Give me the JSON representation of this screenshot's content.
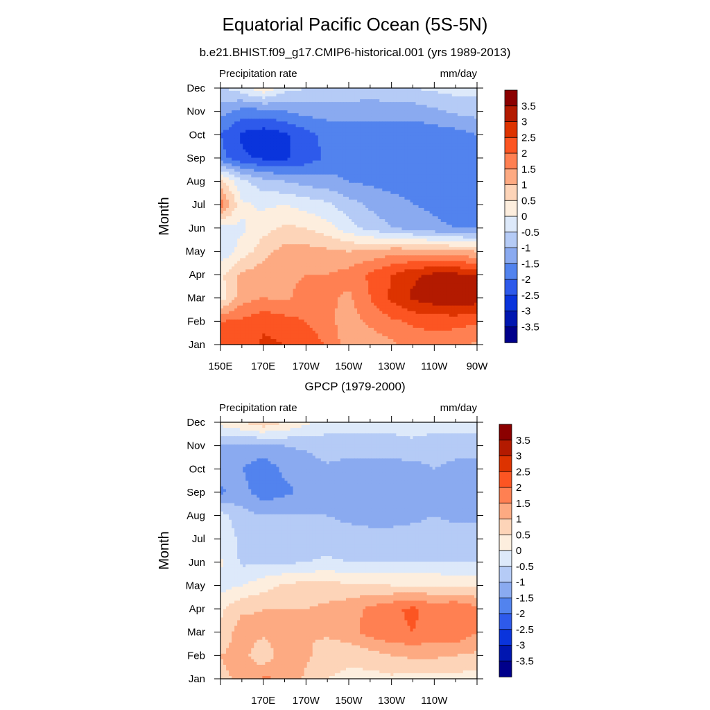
{
  "figure": {
    "title": "Equatorial Pacific Ocean (5S-5N)",
    "subtitle": "b.e21.BHIST.f09_g17.CMIP6-historical.001 (yrs 1989-2013)",
    "panel2_title": "GPCP (1979-2000)"
  },
  "colorbar": {
    "levels": [
      "3.5",
      "3",
      "2.5",
      "2",
      "1.5",
      "1",
      "0.5",
      "0",
      "-0.5",
      "-1",
      "-1.5",
      "-2",
      "-2.5",
      "-3",
      "-3.5"
    ],
    "colors": [
      "#8b0000",
      "#b31a00",
      "#dd3300",
      "#fc5522",
      "#ff8052",
      "#fdaa82",
      "#fdd4b8",
      "#fdeede",
      "#dde9fa",
      "#b5cbf6",
      "#8aaaf0",
      "#5283ee",
      "#2e5aeb",
      "#0a34dc",
      "#0016b0",
      "#00008b"
    ]
  },
  "chart_data": [
    {
      "type": "heatmap",
      "panel": "model",
      "left_label": "Precipitation rate",
      "right_label": "mm/day",
      "ylabel": "Month",
      "yticks": [
        "Jan",
        "Feb",
        "Mar",
        "Apr",
        "May",
        "Jun",
        "Jul",
        "Aug",
        "Sep",
        "Oct",
        "Nov",
        "Dec"
      ],
      "xticks": [
        "150E",
        "170E",
        "170W",
        "150W",
        "130W",
        "110W",
        "90W"
      ],
      "xlim": [
        150,
        270
      ],
      "x": [
        150,
        160,
        170,
        180,
        190,
        200,
        210,
        220,
        230,
        240,
        250,
        260,
        270
      ],
      "y": [
        1,
        2,
        3,
        4,
        5,
        6,
        7,
        8,
        9,
        10,
        11,
        12
      ],
      "z": [
        [
          2.3,
          2.2,
          2.6,
          2.5,
          2.4,
          1.9,
          1.2,
          1.2,
          1.4,
          1.7,
          1.7,
          1.6,
          1.4
        ],
        [
          2.0,
          2.1,
          2.4,
          2.2,
          2.0,
          1.6,
          1.3,
          1.6,
          1.9,
          2.1,
          2.2,
          2.2,
          2.1
        ],
        [
          0.2,
          1.3,
          1.5,
          1.4,
          1.7,
          1.6,
          1.4,
          2.0,
          2.6,
          3.1,
          3.3,
          3.4,
          3.3
        ],
        [
          0.4,
          1.1,
          1.3,
          1.4,
          1.5,
          1.5,
          1.7,
          2.1,
          2.5,
          2.9,
          3.1,
          3.1,
          3.0
        ],
        [
          -0.4,
          0.2,
          0.8,
          1.2,
          1.2,
          1.1,
          1.0,
          1.1,
          1.3,
          1.3,
          1.2,
          1.1,
          1.0
        ],
        [
          -0.2,
          -0.1,
          0.3,
          0.6,
          0.5,
          0.2,
          -0.3,
          -0.7,
          -1.0,
          -1.2,
          -1.4,
          -1.5,
          -1.6
        ],
        [
          1.8,
          0.1,
          -0.1,
          0.0,
          -0.2,
          -0.4,
          -0.8,
          -1.1,
          -1.3,
          -1.5,
          -1.6,
          -1.7,
          -1.7
        ],
        [
          0.7,
          -0.4,
          -0.8,
          -1.0,
          -1.2,
          -1.3,
          -1.5,
          -1.6,
          -1.7,
          -1.7,
          -1.7,
          -1.7,
          -1.7
        ],
        [
          -1.8,
          -2.4,
          -2.6,
          -2.6,
          -2.3,
          -1.9,
          -1.8,
          -1.8,
          -1.8,
          -1.8,
          -1.8,
          -1.8,
          -1.8
        ],
        [
          -2.0,
          -2.6,
          -2.8,
          -2.6,
          -2.2,
          -1.8,
          -1.7,
          -1.8,
          -1.8,
          -1.8,
          -1.8,
          -1.7,
          -1.5
        ],
        [
          -1.3,
          -1.7,
          -1.7,
          -1.5,
          -1.3,
          -1.3,
          -1.3,
          -1.3,
          -1.3,
          -1.3,
          -1.1,
          -0.9,
          -0.8
        ],
        [
          -0.6,
          -0.2,
          0.4,
          -0.3,
          -0.5,
          -0.6,
          -0.6,
          -0.7,
          -0.6,
          -0.5,
          -0.4,
          -0.3,
          -0.3
        ]
      ]
    },
    {
      "type": "heatmap",
      "panel": "gpcp",
      "left_label": "Precipitation rate",
      "right_label": "mm/day",
      "ylabel": "Month",
      "yticks": [
        "Jan",
        "Feb",
        "Mar",
        "Apr",
        "May",
        "Jun",
        "Jul",
        "Aug",
        "Sep",
        "Oct",
        "Nov",
        "Dec"
      ],
      "xticks": [
        "170E",
        "170W",
        "150W",
        "130W",
        "110W"
      ],
      "xlim": [
        150,
        270
      ],
      "x": [
        150,
        160,
        170,
        180,
        190,
        200,
        210,
        220,
        230,
        240,
        250,
        260,
        270
      ],
      "y": [
        1,
        2,
        3,
        4,
        5,
        6,
        7,
        8,
        9,
        10,
        11,
        12
      ],
      "z": [
        [
          0.9,
          1.1,
          1.6,
          1.4,
          0.9,
          0.5,
          0.4,
          0.3,
          0.4,
          0.3,
          0.3,
          0.3,
          0.3
        ],
        [
          1.0,
          1.2,
          0.6,
          1.4,
          1.1,
          0.7,
          0.6,
          0.8,
          1.0,
          1.1,
          1.1,
          1.0,
          0.9
        ],
        [
          0.6,
          1.3,
          1.1,
          1.2,
          1.0,
          1.1,
          1.3,
          1.7,
          1.9,
          2.0,
          1.8,
          1.9,
          1.5
        ],
        [
          0.4,
          0.9,
          1.0,
          1.0,
          1.0,
          1.1,
          1.3,
          1.6,
          1.9,
          2.1,
          1.8,
          2.0,
          1.6
        ],
        [
          -0.2,
          0.0,
          0.3,
          0.6,
          0.7,
          0.7,
          0.6,
          0.6,
          0.5,
          0.5,
          0.5,
          0.4,
          0.4
        ],
        [
          0.1,
          -0.6,
          -0.6,
          -0.6,
          -0.5,
          -0.4,
          -0.5,
          -0.5,
          -0.5,
          -0.5,
          -0.5,
          -0.5,
          -0.5
        ],
        [
          -0.2,
          -0.6,
          -0.7,
          -0.8,
          -0.8,
          -0.8,
          -0.8,
          -0.8,
          -0.8,
          -0.8,
          -0.8,
          -0.8,
          -0.8
        ],
        [
          -0.3,
          -0.8,
          -1.0,
          -1.0,
          -1.0,
          -1.0,
          -1.1,
          -1.2,
          -1.2,
          -1.1,
          -1.0,
          -1.1,
          -1.1
        ],
        [
          -1.6,
          -1.3,
          -1.8,
          -1.6,
          -1.4,
          -1.3,
          -1.4,
          -1.4,
          -1.4,
          -1.3,
          -1.0,
          -1.4,
          -1.4
        ],
        [
          -1.2,
          -1.5,
          -1.8,
          -1.4,
          -1.3,
          -1.1,
          -1.3,
          -1.3,
          -1.3,
          -1.2,
          -1.0,
          -1.2,
          -1.2
        ],
        [
          -1.0,
          -1.1,
          -1.2,
          -1.0,
          -0.9,
          -0.7,
          -0.6,
          -0.6,
          -0.6,
          -0.6,
          -0.7,
          -0.7,
          -0.7
        ],
        [
          0.2,
          0.5,
          0.9,
          0.5,
          0.1,
          -0.3,
          -0.4,
          -0.4,
          -0.4,
          -0.3,
          -0.3,
          -0.3,
          -0.3
        ]
      ]
    }
  ]
}
